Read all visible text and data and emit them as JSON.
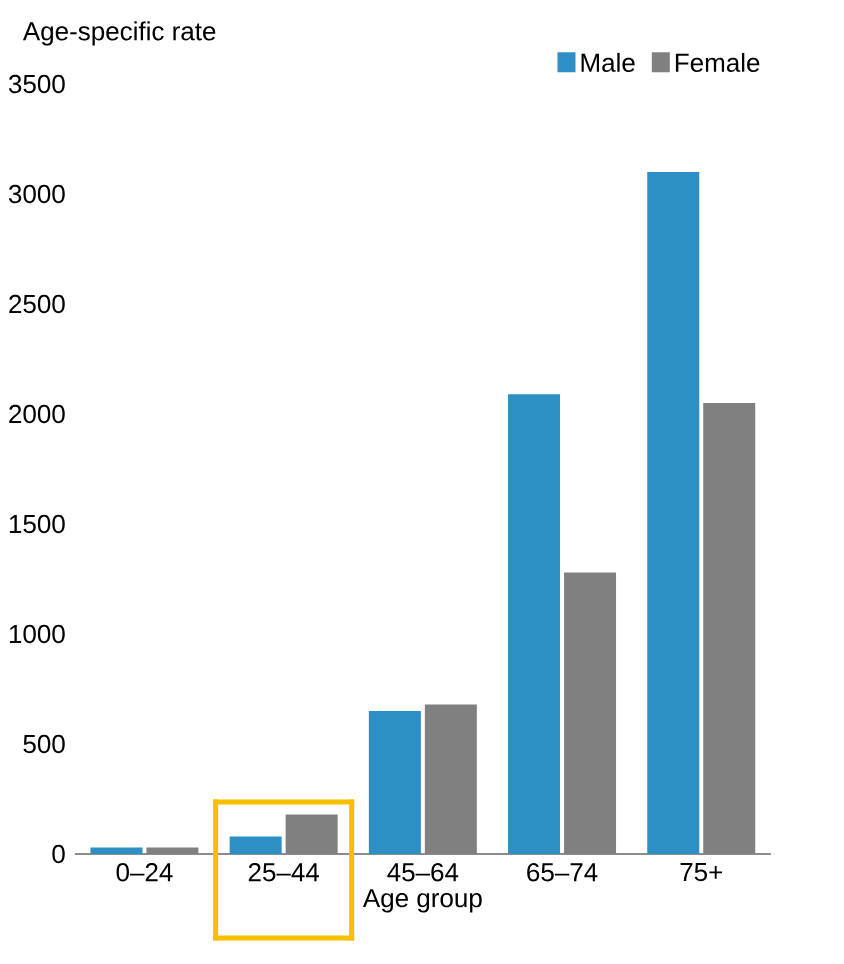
{
  "chart_data": {
    "type": "bar",
    "ylabel": "Age-specific rate",
    "xlabel": "Age group",
    "categories": [
      "0–24",
      "25–44",
      "45–64",
      "65–74",
      "75+"
    ],
    "series": [
      {
        "name": "Male",
        "color": "#2e8fc4",
        "values": [
          30,
          80,
          650,
          2090,
          3100
        ]
      },
      {
        "name": "Female",
        "color": "#808080",
        "values": [
          30,
          180,
          680,
          1280,
          2050
        ]
      }
    ],
    "ylim": [
      0,
      3500
    ],
    "yticks": [
      0,
      500,
      1000,
      1500,
      2000,
      2500,
      3000,
      3500
    ],
    "grid": false,
    "legend": "top right"
  }
}
